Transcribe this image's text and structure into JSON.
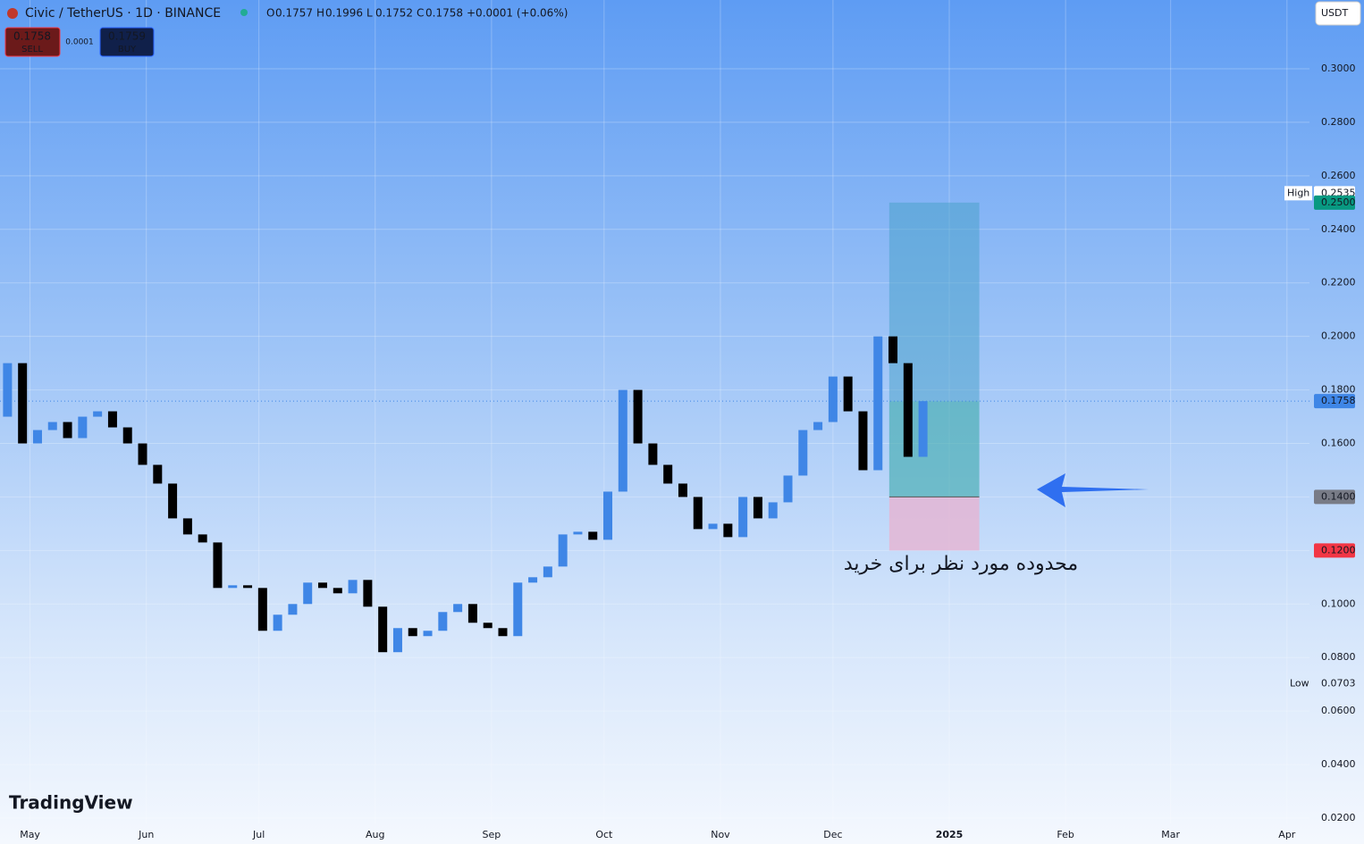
{
  "header": {
    "symbol": "Civic / TetherUS · 1D · BINANCE",
    "ohlc": [
      [
        "O",
        "0.1757"
      ],
      [
        "H",
        "0.1996"
      ],
      [
        "L",
        "0.1752"
      ],
      [
        "C",
        "0.1758"
      ]
    ],
    "change": "+0.0001 (+0.06%)",
    "sell_price": "0.1758",
    "sell": "SELL",
    "spread": "0.0001",
    "buy_price": "0.1759",
    "buy": "BUY",
    "currency": "USDT",
    "logo": "TradingView"
  },
  "chart_data": {
    "type": "candlestick",
    "up_color": "#3f86e6",
    "down_color": "#000000",
    "grid": true,
    "x": [
      -6,
      -2,
      2,
      6,
      10,
      14,
      18,
      22,
      26,
      30,
      34,
      38,
      42,
      46,
      50,
      54,
      58,
      62,
      66,
      70,
      74,
      78,
      82,
      86,
      90,
      94,
      98,
      102,
      106,
      110,
      114,
      118,
      122,
      126,
      130,
      134,
      138,
      142,
      146,
      150,
      154,
      158,
      162,
      166,
      170,
      174,
      178,
      182,
      186,
      190,
      194,
      198,
      202,
      206,
      210,
      214,
      218,
      222,
      226,
      230,
      234,
      238
    ],
    "open": [
      0.17,
      0.19,
      0.16,
      0.165,
      0.168,
      0.162,
      0.17,
      0.172,
      0.166,
      0.16,
      0.152,
      0.145,
      0.132,
      0.126,
      0.123,
      0.106,
      0.107,
      0.106,
      0.09,
      0.096,
      0.1,
      0.108,
      0.106,
      0.104,
      0.109,
      0.099,
      0.082,
      0.091,
      0.088,
      0.09,
      0.097,
      0.1,
      0.093,
      0.091,
      0.088,
      0.108,
      0.11,
      0.114,
      0.126,
      0.127,
      0.124,
      0.142,
      0.18,
      0.16,
      0.152,
      0.145,
      0.14,
      0.128,
      0.13,
      0.125,
      0.14,
      0.132,
      0.138,
      0.148,
      0.165,
      0.168,
      0.185,
      0.172,
      0.15,
      0.2,
      0.19,
      0.155
    ],
    "high": 0.2535,
    "low": 0.0703,
    "close": [
      0.19,
      0.16,
      0.165,
      0.168,
      0.162,
      0.17,
      0.172,
      0.166,
      0.16,
      0.152,
      0.145,
      0.132,
      0.126,
      0.123,
      0.106,
      0.107,
      0.106,
      0.09,
      0.096,
      0.1,
      0.108,
      0.106,
      0.104,
      0.109,
      0.099,
      0.082,
      0.091,
      0.088,
      0.09,
      0.097,
      0.1,
      0.093,
      0.091,
      0.088,
      0.108,
      0.11,
      0.114,
      0.126,
      0.127,
      0.124,
      0.142,
      0.18,
      0.16,
      0.152,
      0.145,
      0.14,
      0.128,
      0.13,
      0.125,
      0.14,
      0.132,
      0.138,
      0.148,
      0.165,
      0.168,
      0.185,
      0.172,
      0.15,
      0.2,
      0.19,
      0.155,
      0.1758
    ],
    "xlim": [
      -8,
      341
    ],
    "xticks": [
      {
        "value": 0,
        "label": "May"
      },
      {
        "value": 31,
        "label": "Jun"
      },
      {
        "value": 61,
        "label": "Jul"
      },
      {
        "value": 92,
        "label": "Aug"
      },
      {
        "value": 123,
        "label": "Sep"
      },
      {
        "value": 153,
        "label": "Oct"
      },
      {
        "value": 184,
        "label": "Nov"
      },
      {
        "value": 214,
        "label": "Dec"
      },
      {
        "value": 245,
        "label": "2025"
      },
      {
        "value": 276,
        "label": "Feb"
      },
      {
        "value": 304,
        "label": "Mar"
      },
      {
        "value": 335,
        "label": "Apr"
      }
    ],
    "ylim": [
      0.018,
      0.3257
    ],
    "yticks": [
      {
        "value": 0.02,
        "label": "0.0200"
      },
      {
        "value": 0.04,
        "label": "0.0400"
      },
      {
        "value": 0.06,
        "label": "0.0600"
      },
      {
        "value": 0.08,
        "label": "0.0800"
      },
      {
        "value": 0.1,
        "label": "0.1000"
      },
      {
        "value": 0.12,
        "label": "0.1200"
      },
      {
        "value": 0.14,
        "label": "0.1400"
      },
      {
        "value": 0.16,
        "label": "0.1600"
      },
      {
        "value": 0.18,
        "label": "0.1800"
      },
      {
        "value": 0.2,
        "label": "0.2000"
      },
      {
        "value": 0.22,
        "label": "0.2200"
      },
      {
        "value": 0.24,
        "label": "0.2400"
      },
      {
        "value": 0.26,
        "label": "0.2600"
      },
      {
        "value": 0.28,
        "label": "0.2800"
      },
      {
        "value": 0.3,
        "label": "0.3000"
      }
    ],
    "high_label": "High",
    "low_label": "Low",
    "position": {
      "x": [
        229,
        253
      ],
      "target": {
        "value": 0.25,
        "label": "0.2500"
      },
      "entry": {
        "value": 0.14,
        "label": "0.1400"
      },
      "stop": {
        "value": 0.12,
        "label": "0.1200"
      },
      "current": 0.1758
    },
    "annotation": "محدوده مورد نظر برای خرید"
  }
}
